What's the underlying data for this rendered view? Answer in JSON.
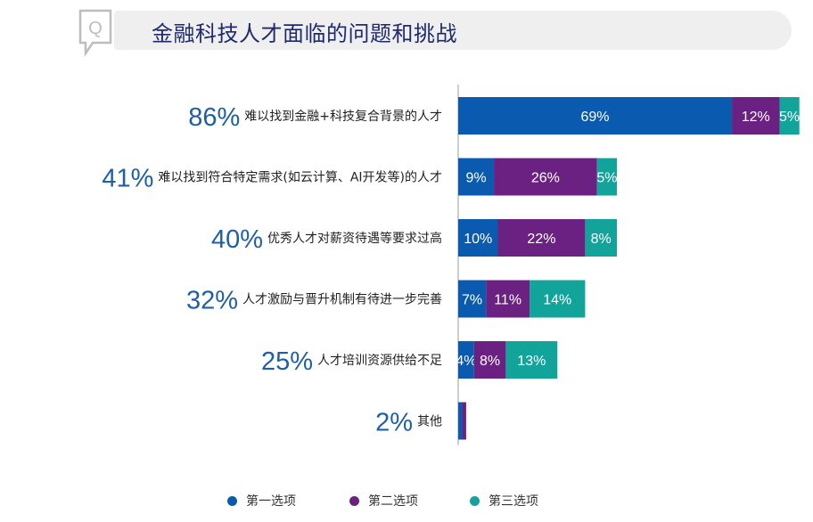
{
  "header": {
    "icon": "q-speech-bubble-icon",
    "title": "金融科技人才面临的问题和挑战"
  },
  "colors": {
    "first": "#0a5bb0",
    "second": "#6b2181",
    "third": "#12a39b",
    "total_label": "#1f5fa8",
    "text": "#222222"
  },
  "chart_data": {
    "type": "bar",
    "orientation": "horizontal",
    "stacked": true,
    "xlim": [
      0,
      100
    ],
    "categories": [
      "难以找到金融+科技复合背景的人才",
      "难以找到符合特定需求(如云计算、AI开发等)的人才",
      "优秀人才对薪资待遇等要求过高",
      "人才激励与晋升机制有待进一步完善",
      "人才培训资源供给不足",
      "其他"
    ],
    "totals": [
      "86%",
      "41%",
      "40%",
      "32%",
      "25%",
      "2%"
    ],
    "series": [
      {
        "name": "第一选项",
        "values": [
          69,
          9,
          10,
          7,
          4,
          1
        ]
      },
      {
        "name": "第二选项",
        "values": [
          12,
          26,
          22,
          11,
          8,
          1
        ]
      },
      {
        "name": "第三选项",
        "values": [
          5,
          5,
          8,
          14,
          13,
          0
        ]
      }
    ],
    "segment_labels": [
      [
        "69%",
        "12%",
        "5%"
      ],
      [
        "9%",
        "26%",
        "5%"
      ],
      [
        "10%",
        "22%",
        "8%"
      ],
      [
        "7%",
        "11%",
        "14%"
      ],
      [
        "4%",
        "8%",
        "13%"
      ],
      [
        "",
        "",
        ""
      ]
    ],
    "legend_position": "bottom"
  },
  "legend": [
    {
      "label": "第一选项"
    },
    {
      "label": "第二选项"
    },
    {
      "label": "第三选项"
    }
  ]
}
